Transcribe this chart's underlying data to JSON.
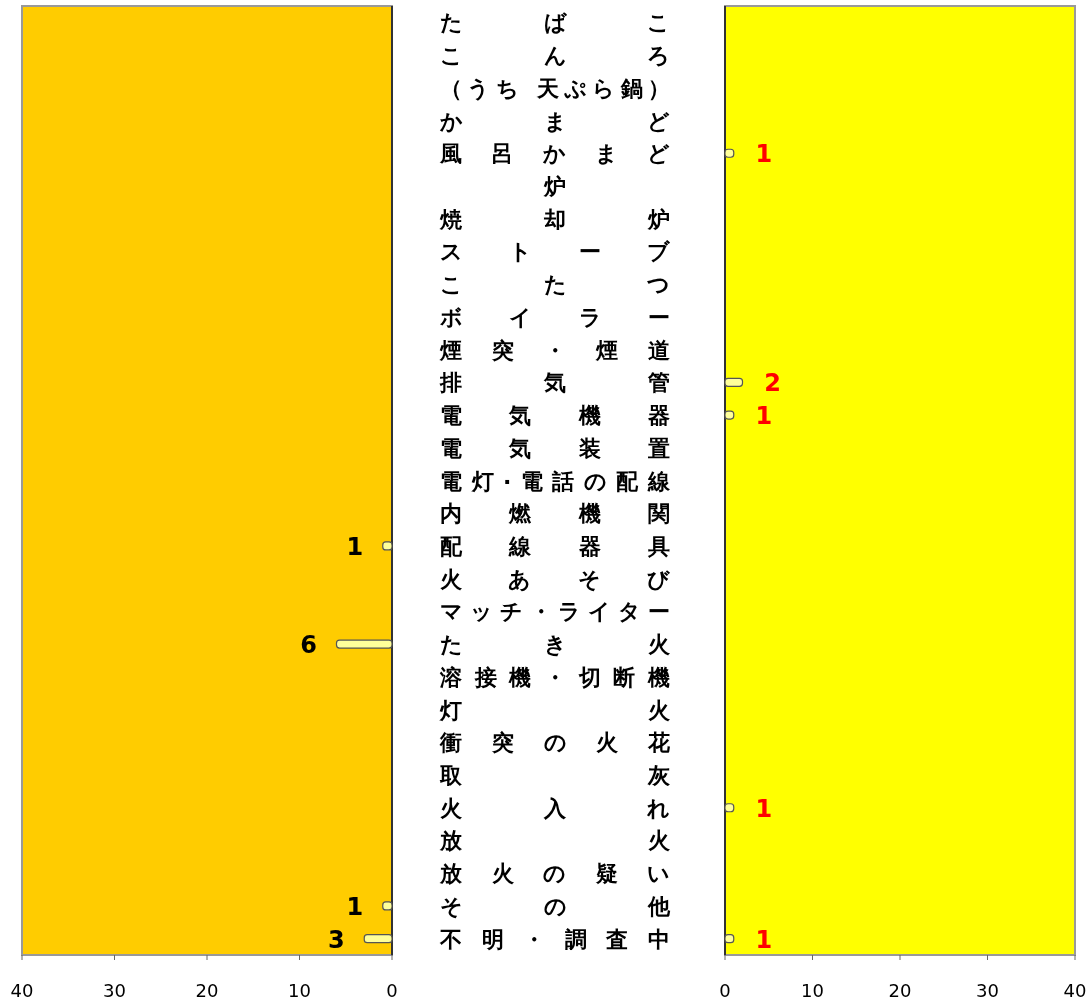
{
  "chart_data": [
    {
      "type": "bar",
      "orientation": "horizontal",
      "categories": [
        "たばこ",
        "こんろ",
        "（うち 天ぷら鍋）",
        "かまど",
        "風呂かまど",
        "炉",
        "焼却炉",
        "ストーブ",
        "こたつ",
        "ボイラー",
        "煙突・煙道",
        "排気管",
        "電気機器",
        "電気装置",
        "電灯·電話の配線",
        "内燃機関",
        "配線器具",
        "火あそび",
        "マッチ・ライター",
        "たき火",
        "溶接機・切断機",
        "灯火",
        "衝突の火花",
        "取灰",
        "火入れ",
        "放火",
        "放火の疑い",
        "その他",
        "不明・調査中"
      ],
      "values": [
        0,
        0,
        0,
        0,
        0,
        0,
        0,
        0,
        0,
        0,
        0,
        0,
        0,
        0,
        0,
        0,
        1,
        0,
        0,
        6,
        0,
        0,
        0,
        0,
        0,
        0,
        0,
        1,
        3
      ],
      "value_labels": [
        null,
        null,
        null,
        null,
        null,
        null,
        null,
        null,
        null,
        null,
        null,
        null,
        null,
        null,
        null,
        null,
        "1",
        null,
        null,
        "6",
        null,
        null,
        null,
        null,
        null,
        null,
        null,
        "1",
        "3"
      ],
      "color": "#ffff99",
      "xlim": [
        40,
        0
      ],
      "xticks": [
        40,
        30,
        20,
        10,
        0
      ]
    },
    {
      "type": "bar",
      "orientation": "horizontal",
      "values": [
        0,
        0,
        0,
        0,
        1,
        0,
        0,
        0,
        0,
        0,
        0,
        2,
        1,
        0,
        0,
        0,
        0,
        0,
        0,
        0,
        0,
        0,
        0,
        0,
        1,
        0,
        0,
        0,
        1
      ],
      "value_labels": [
        null,
        null,
        null,
        null,
        "1",
        null,
        null,
        null,
        null,
        null,
        null,
        "2",
        "1",
        null,
        null,
        null,
        null,
        null,
        null,
        null,
        null,
        null,
        null,
        null,
        "1",
        null,
        null,
        null,
        "1"
      ],
      "color": "#ffff99",
      "xlim": [
        0,
        40
      ],
      "xticks": [
        0,
        10,
        20,
        30,
        40
      ],
      "tick_labels": "x"
    }
  ]
}
